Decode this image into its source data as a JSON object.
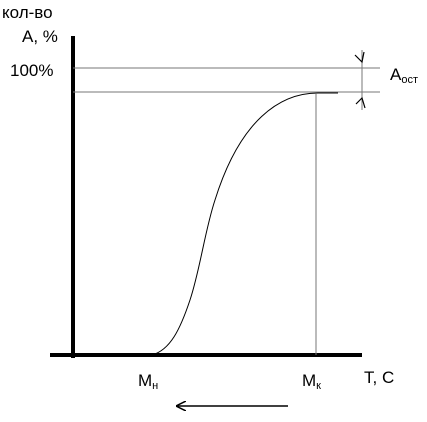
{
  "diagram": {
    "y_axis_label_line1": "кол-во",
    "y_axis_label_line2": "А, %",
    "y_tick_100": "100%",
    "x_axis_label": "Т, С",
    "mark_start": {
      "main": "М",
      "sub": "н"
    },
    "mark_end": {
      "main": "М",
      "sub": "к"
    },
    "residual": {
      "main": "А",
      "sub": "ост"
    },
    "colors": {
      "line": "#000000",
      "thin_line": "#777777",
      "background": "#ffffff"
    }
  }
}
